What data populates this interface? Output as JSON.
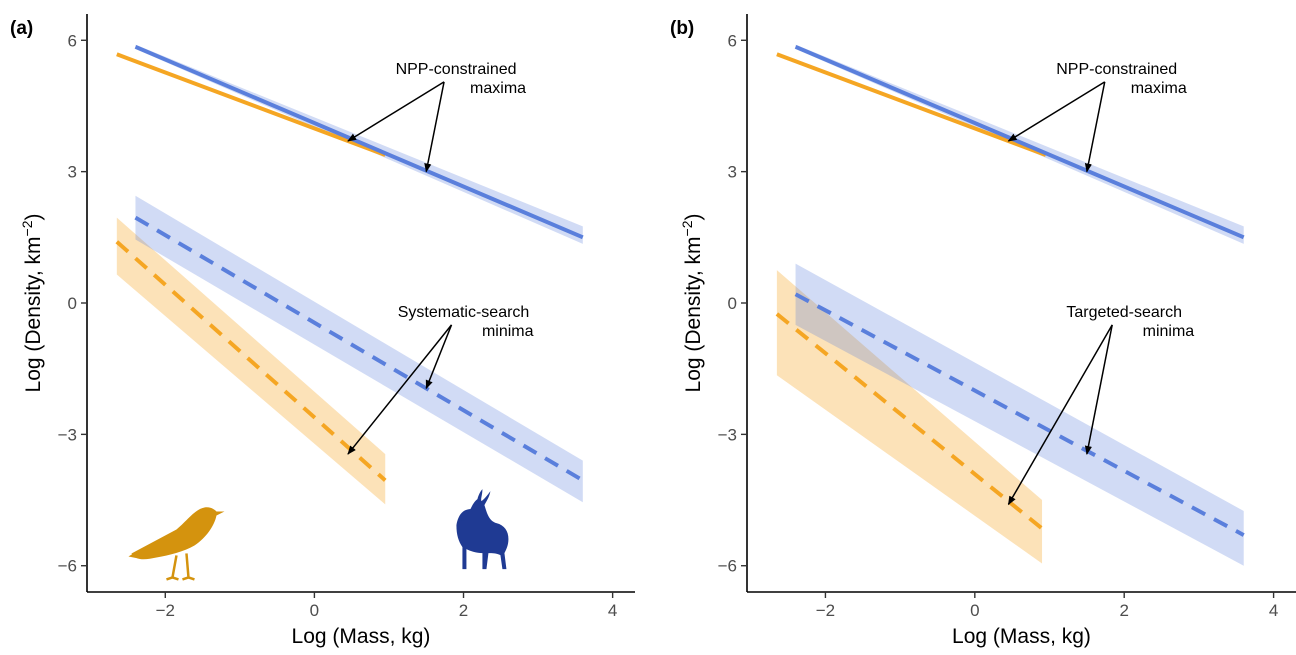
{
  "chart_data": [
    {
      "type": "line",
      "panel_label": "(a)",
      "xlabel": "Log (Mass, kg)",
      "ylabel_main": "Log (Density, km",
      "ylabel_sup": "−2",
      "ylabel_end": ")",
      "xlim": [
        -3.05,
        4.3
      ],
      "ylim": [
        -6.6,
        6.6
      ],
      "xticks": [
        -2,
        0,
        2,
        4
      ],
      "xtick_labels": [
        "−2",
        "0",
        "2",
        "4"
      ],
      "yticks": [
        -6,
        -3,
        0,
        3,
        6
      ],
      "ytick_labels": [
        "−6",
        "−3",
        "0",
        "3",
        "6"
      ],
      "grid": false,
      "series": [
        {
          "group": "bird",
          "kind": "maxima",
          "color": "#F5A623",
          "dashed": false,
          "x": [
            -2.65,
            0.95
          ],
          "y": [
            5.68,
            3.38
          ],
          "band_lower": null,
          "band_upper": null
        },
        {
          "group": "mammal",
          "kind": "maxima",
          "color": "#5A7FDC",
          "dashed": false,
          "x": [
            -2.4,
            3.6
          ],
          "y": [
            5.85,
            1.5
          ],
          "band_lower": [
            5.8,
            1.35
          ],
          "band_upper": [
            5.9,
            1.75
          ]
        },
        {
          "group": "bird",
          "kind": "minima",
          "color": "#F5A623",
          "dashed": true,
          "x": [
            -2.65,
            0.95
          ],
          "y": [
            1.4,
            -4.05
          ],
          "band_lower": [
            0.65,
            -4.6
          ],
          "band_upper": [
            1.95,
            -3.45
          ]
        },
        {
          "group": "mammal",
          "kind": "minima",
          "color": "#5A7FDC",
          "dashed": true,
          "x": [
            -2.4,
            3.6
          ],
          "y": [
            1.95,
            -4.05
          ],
          "band_lower": [
            1.45,
            -4.55
          ],
          "band_upper": [
            2.45,
            -3.6
          ]
        }
      ],
      "annotations": [
        {
          "lines": [
            "NPP-constrained",
            "maxima"
          ],
          "x": 1.9,
          "y": 5.05,
          "arrow_targets": [
            [
              0.45,
              3.7
            ],
            [
              1.5,
              3.0
            ]
          ]
        },
        {
          "lines": [
            "Systematic-search",
            "minima"
          ],
          "x": 2.0,
          "y": -0.5,
          "arrow_targets": [
            [
              0.45,
              -3.45
            ],
            [
              1.5,
              -1.95
            ]
          ]
        }
      ],
      "silhouettes": [
        {
          "icon": "bird-silhouette-icon",
          "color": "#D4930E",
          "x": -1.85,
          "y": -5.4
        },
        {
          "icon": "antelope-silhouette-icon",
          "color": "#1F3A93",
          "x": 2.2,
          "y": -5.3
        }
      ]
    },
    {
      "type": "line",
      "panel_label": "(b)",
      "xlabel": "Log (Mass, kg)",
      "ylabel_main": "Log (Density, km",
      "ylabel_sup": "−2",
      "ylabel_end": ")",
      "xlim": [
        -3.05,
        4.3
      ],
      "ylim": [
        -6.6,
        6.6
      ],
      "xticks": [
        -2,
        0,
        2,
        4
      ],
      "xtick_labels": [
        "−2",
        "0",
        "2",
        "4"
      ],
      "yticks": [
        -6,
        -3,
        0,
        3,
        6
      ],
      "ytick_labels": [
        "−6",
        "−3",
        "0",
        "3",
        "6"
      ],
      "grid": false,
      "series": [
        {
          "group": "bird",
          "kind": "maxima",
          "color": "#F5A623",
          "dashed": false,
          "x": [
            -2.65,
            0.95
          ],
          "y": [
            5.68,
            3.38
          ],
          "band_lower": null,
          "band_upper": null
        },
        {
          "group": "mammal",
          "kind": "maxima",
          "color": "#5A7FDC",
          "dashed": false,
          "x": [
            -2.4,
            3.6
          ],
          "y": [
            5.85,
            1.5
          ],
          "band_lower": [
            5.8,
            1.35
          ],
          "band_upper": [
            5.9,
            1.75
          ]
        },
        {
          "group": "bird",
          "kind": "minima",
          "color": "#F5A623",
          "dashed": true,
          "x": [
            -2.65,
            0.9
          ],
          "y": [
            -0.25,
            -5.15
          ],
          "band_lower": [
            -1.65,
            -5.95
          ],
          "band_upper": [
            0.75,
            -4.5
          ]
        },
        {
          "group": "mammal",
          "kind": "minima",
          "color": "#5A7FDC",
          "dashed": true,
          "x": [
            -2.4,
            3.6
          ],
          "y": [
            0.2,
            -5.3
          ],
          "band_lower": [
            -0.5,
            -6.0
          ],
          "band_upper": [
            0.9,
            -4.75
          ]
        }
      ],
      "annotations": [
        {
          "lines": [
            "NPP-constrained",
            "maxima"
          ],
          "x": 1.9,
          "y": 5.05,
          "arrow_targets": [
            [
              0.45,
              3.7
            ],
            [
              1.5,
              3.0
            ]
          ]
        },
        {
          "lines": [
            "Targeted-search",
            "minima"
          ],
          "x": 2.0,
          "y": -0.5,
          "arrow_targets": [
            [
              0.45,
              -4.6
            ],
            [
              1.5,
              -3.45
            ]
          ]
        }
      ],
      "silhouettes": []
    }
  ]
}
